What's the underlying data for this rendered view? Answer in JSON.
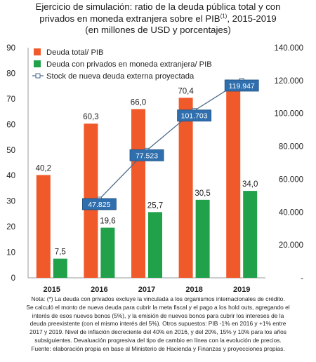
{
  "title": {
    "line1": "Ejercicio de simulación:  ratio de la deuda pública total y con",
    "line2_main": "privados en moneda extranjera sobre el PIB",
    "line2_sup": "(1)",
    "line2_end": ", 2015-2019",
    "line3": "(en millones de USD y porcentajes)"
  },
  "chart_data": {
    "type": "bar",
    "categories": [
      "2015",
      "2016",
      "2017",
      "2018",
      "2019"
    ],
    "series": [
      {
        "name": "Deuda total/ PIB",
        "type": "bar",
        "axis": "left",
        "color": "#f05a2b",
        "values": [
          40.2,
          60.3,
          66.0,
          70.4,
          73.5
        ],
        "labels": [
          "40,2",
          "60,3",
          "66,0",
          "70,4",
          "73,5"
        ]
      },
      {
        "name": "Deuda con privados en moneda extranjera/ PIB",
        "type": "bar",
        "axis": "left",
        "color": "#20a14a",
        "values": [
          7.5,
          19.6,
          25.7,
          30.5,
          34.0
        ],
        "labels": [
          "7,5",
          "19,6",
          "25,7",
          "30,5",
          "34,0"
        ]
      },
      {
        "name": "Stock de nueva deuda externa proyectada",
        "type": "line",
        "axis": "right",
        "color": "#4a6a8a",
        "x": [
          "2016",
          "2017",
          "2018",
          "2019"
        ],
        "values": [
          47825,
          77523,
          101703,
          119947
        ],
        "labels": [
          "47.825",
          "77.523",
          "101.703",
          "119.947"
        ]
      }
    ],
    "y_left": {
      "range": [
        0,
        90
      ],
      "ticks": [
        "0",
        "10",
        "20",
        "30",
        "40",
        "50",
        "60",
        "70",
        "80",
        "90"
      ]
    },
    "y_right": {
      "range": [
        0,
        140000
      ],
      "ticks": [
        "-",
        "20.000",
        "40.000",
        "60.000",
        "80.000",
        "100.000",
        "120.000",
        "140.000"
      ]
    },
    "legend_position": "top-left",
    "grid": false
  },
  "notes": [
    "Nota: (*) La deuda con privados excluye la vinculada a los organismos internacionales de crédito.",
    "Se calculó el monto de nueva deuda para cubrir la meta fiscal y el pago a los hold outs, agregando el",
    "interés de esos nuevos bonos (5%), y la emisión de nuevos bonos para cubrir los intereses de la",
    "deuda preexistente (con el mismo interés del 5%). Otros supuestos: PIB -1% en 2016 y +1% entre",
    "2017 y 2019. Nivel de inflación decreciente del 40% en 2016, y del 20%, 15% y 10% para los años",
    "subsiguientes. Devaluación progresiva del tipo de cambio en línea con la evolución de precios.",
    "Fuente: elaboración propia en base al Ministerio de Hacienda y Finanzas y proyecciones propias."
  ],
  "colors": {
    "line_label_bg": "#2f6fae",
    "line_label_text": "#ffffff"
  }
}
